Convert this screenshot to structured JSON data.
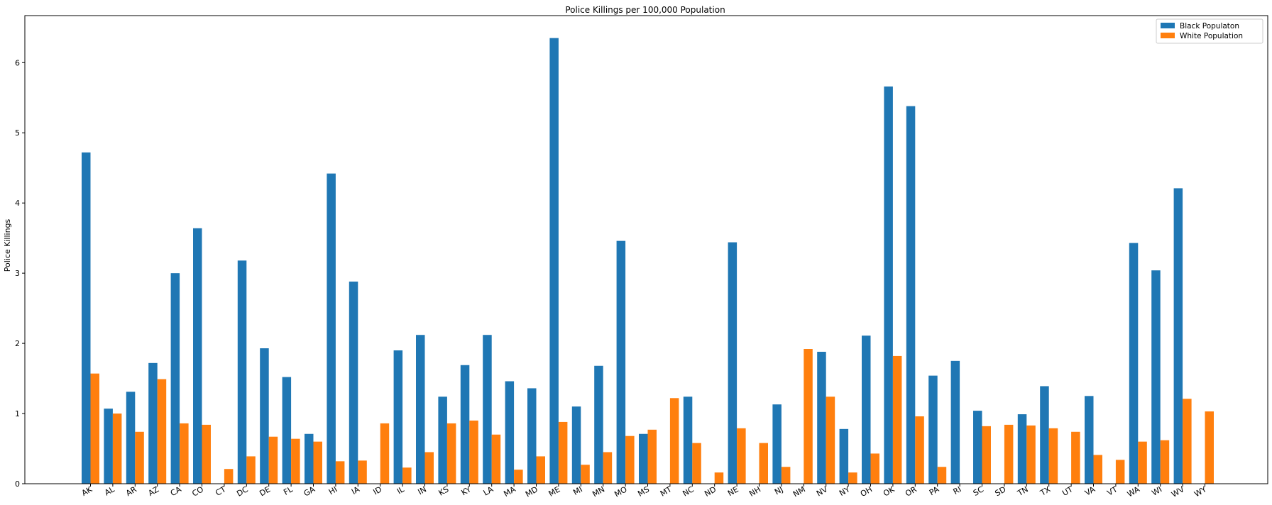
{
  "chart_data": {
    "type": "bar",
    "title": "Police Killings per 100,000 Population",
    "xlabel": "",
    "ylabel": "Police Killings",
    "ylim": [
      0,
      6.67
    ],
    "yticks": [
      0,
      1,
      2,
      3,
      4,
      5,
      6
    ],
    "grid": false,
    "legend_position": "top-right",
    "categories": [
      "AK",
      "AL",
      "AR",
      "AZ",
      "CA",
      "CO",
      "CT",
      "DC",
      "DE",
      "FL",
      "GA",
      "HI",
      "IA",
      "ID",
      "IL",
      "IN",
      "KS",
      "KY",
      "LA",
      "MA",
      "MD",
      "ME",
      "MI",
      "MN",
      "MO",
      "MS",
      "MT",
      "NC",
      "ND",
      "NE",
      "NH",
      "NJ",
      "NM",
      "NV",
      "NY",
      "OH",
      "OK",
      "OR",
      "PA",
      "RI",
      "SC",
      "SD",
      "TN",
      "TX",
      "UT",
      "VA",
      "VT",
      "WA",
      "WI",
      "WV",
      "WY"
    ],
    "series": [
      {
        "name": "Black Populaton",
        "color": "#1f77b4",
        "values": [
          4.72,
          1.07,
          1.31,
          1.72,
          3.0,
          3.64,
          0,
          3.18,
          1.93,
          1.52,
          0.71,
          4.42,
          2.88,
          0,
          1.9,
          2.12,
          1.24,
          1.69,
          2.12,
          1.46,
          1.36,
          6.35,
          1.1,
          1.68,
          3.46,
          0.71,
          0,
          1.24,
          0,
          3.44,
          0,
          1.13,
          0,
          1.88,
          0.78,
          2.11,
          5.66,
          5.38,
          1.54,
          1.75,
          1.04,
          0,
          0.99,
          1.39,
          0,
          1.25,
          0,
          3.43,
          3.04,
          4.21,
          0
        ]
      },
      {
        "name": "White Population",
        "color": "#ff7f0e",
        "values": [
          1.57,
          1.0,
          0.74,
          1.49,
          0.86,
          0.84,
          0.21,
          0.39,
          0.67,
          0.64,
          0.6,
          0.32,
          0.33,
          0.86,
          0.23,
          0.45,
          0.86,
          0.9,
          0.7,
          0.2,
          0.39,
          0.88,
          0.27,
          0.45,
          0.68,
          0.77,
          1.22,
          0.58,
          0.16,
          0.79,
          0.58,
          0.24,
          1.92,
          1.24,
          0.16,
          0.43,
          1.82,
          0.96,
          0.24,
          0,
          0.82,
          0.84,
          0.83,
          0.79,
          0.74,
          0.41,
          0.34,
          0.6,
          0.62,
          1.21,
          1.03
        ]
      }
    ]
  }
}
